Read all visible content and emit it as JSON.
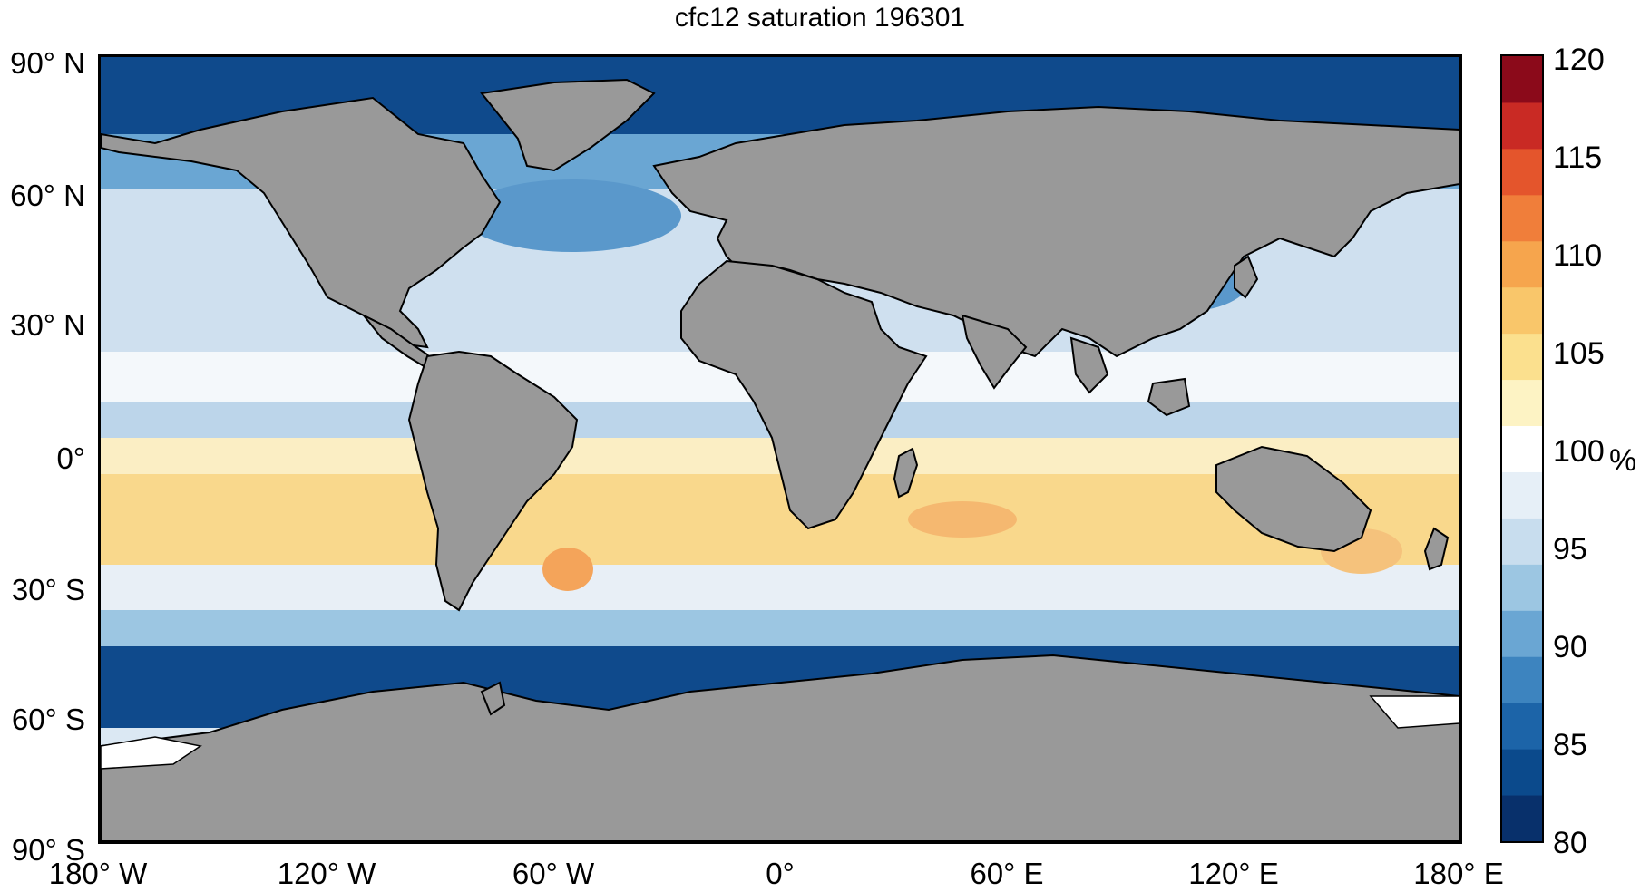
{
  "title": "cfc12 saturation 196301",
  "lat_ticks": [
    "90° N",
    "60° N",
    "30° N",
    "0°",
    "30° S",
    "60° S",
    "90° S"
  ],
  "lon_ticks": [
    "180° W",
    "120° W",
    "60° W",
    "0°",
    "60° E",
    "120° E",
    "180° E"
  ],
  "colorbar": {
    "ticks": [
      "120",
      "115",
      "110",
      "105",
      "100",
      "95",
      "90",
      "85",
      "80"
    ],
    "unit": "%",
    "range": [
      80,
      120
    ],
    "colors": [
      "#08306b",
      "#0b4a8c",
      "#1c64a8",
      "#3d84bf",
      "#6aa6d3",
      "#9cc6e2",
      "#c8ddee",
      "#e6eff7",
      "#ffffff",
      "#fdf3c4",
      "#fbe08e",
      "#f9c66a",
      "#f6a54d",
      "#f07e3a",
      "#e4552c",
      "#c92a24",
      "#8b0a1a"
    ]
  },
  "map": {
    "land_color": "#999999",
    "ice_color": "#ffffff",
    "field": "cfc12 saturation",
    "dominant_values": {
      "polar": 82,
      "subpolar": 92,
      "temperate": 97,
      "subtropical_south": 103,
      "brazil_confluence": 108
    }
  }
}
